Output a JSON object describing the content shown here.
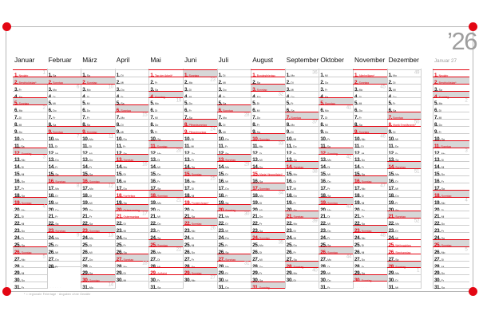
{
  "year_label": "’26",
  "imprint": "* = regionale Feiertage · Angaben ohne Gewähr",
  "micro_label": "· · · · · ·",
  "sunday_label": "Sonntag",
  "weekday_abbrev": [
    "Mo",
    "Di",
    "Mi",
    "Do",
    "Fr",
    "Sa"
  ],
  "colors": {
    "holiday_red": "#e30613",
    "sunday_bg": "#d7d7d7",
    "grid_line": "#cecece",
    "week_number_gray": "#c6c6c6",
    "muted_gray": "#9c9c9c"
  },
  "months": [
    {
      "name": "Januar",
      "dow1": 2,
      "days": 31,
      "holidays": {
        "1": "Neujahr",
        "2": "Berchtoldstag*"
      },
      "shade_days": [
        2
      ],
      "weeks": {
        "1": 1,
        "6": 2,
        "13": 3,
        "20": 4,
        "27": 5
      }
    },
    {
      "name": "Februar",
      "dow1": 5,
      "days": 28,
      "holidays": {},
      "weeks": {
        "3": 6,
        "10": 7,
        "17": 8,
        "24": 9
      },
      "micro": true
    },
    {
      "name": "März",
      "dow1": 5,
      "days": 31,
      "holidays": {},
      "weeks": {
        "3": 10,
        "10": 11,
        "17": 12,
        "24": 13,
        "31": 14
      }
    },
    {
      "name": "April",
      "dow1": 1,
      "days": 30,
      "holidays": {
        "18": "Karfreitag",
        "20": "Ostersonntag",
        "21": "Ostermontag"
      },
      "weeks": {
        "7": 15,
        "14": 16,
        "21": 17,
        "28": 18
      }
    },
    {
      "name": "Mai",
      "dow1": 3,
      "days": 31,
      "holidays": {
        "1": "Tag der Arbeit*",
        "29": "Auffahrt"
      },
      "weeks": {
        "5": 19,
        "12": 20,
        "19": 21,
        "26": 22
      }
    },
    {
      "name": "Juni",
      "dow1": 6,
      "days": 30,
      "holidays": {
        "8": "Pfingstsonntag",
        "9": "Pfingstmontag",
        "19": "Fronleichnam*"
      },
      "weeks": {
        "2": 23,
        "9": 24,
        "16": 25,
        "23": 26,
        "30": 27
      }
    },
    {
      "name": "Juli",
      "dow1": 1,
      "days": 31,
      "holidays": {},
      "weeks": {
        "7": 28,
        "14": 29,
        "21": 30,
        "28": 31
      }
    },
    {
      "name": "August",
      "dow1": 4,
      "days": 31,
      "holidays": {
        "1": "Bundesfeiertag",
        "15": "Maria Himmelfahrt*"
      },
      "weeks": {
        "4": 32,
        "11": 33,
        "18": 34,
        "25": 35
      }
    },
    {
      "name": "September",
      "dow1": 0,
      "days": 30,
      "holidays": {},
      "weeks": {
        "1": 36,
        "8": 37,
        "15": 38,
        "22": 39,
        "29": 40
      }
    },
    {
      "name": "Oktober",
      "dow1": 2,
      "days": 31,
      "holidays": {},
      "weeks": {
        "6": 41,
        "13": 42,
        "20": 43,
        "27": 44
      }
    },
    {
      "name": "November",
      "dow1": 5,
      "days": 30,
      "holidays": {
        "1": "Allerheiligen*"
      },
      "weeks": {
        "3": 45,
        "10": 46,
        "17": 47,
        "24": 48
      },
      "micro": true
    },
    {
      "name": "Dezember",
      "dow1": 0,
      "days": 31,
      "holidays": {
        "8": "Mariä Empfängnis*",
        "25": "Weihnachten",
        "26": "Stephanstag"
      },
      "weeks": {
        "1": 49,
        "8": 50,
        "15": 51,
        "22": 52,
        "29": 1
      }
    },
    {
      "name": "Januar 27",
      "dow1": 3,
      "days": 31,
      "muted": true,
      "holidays": {
        "1": "Neujahr",
        "2": "Berchtoldstag*"
      },
      "shade_days": [
        2
      ],
      "weeks": {
        "5": 2,
        "12": 3,
        "19": 4,
        "26": 5
      }
    }
  ]
}
